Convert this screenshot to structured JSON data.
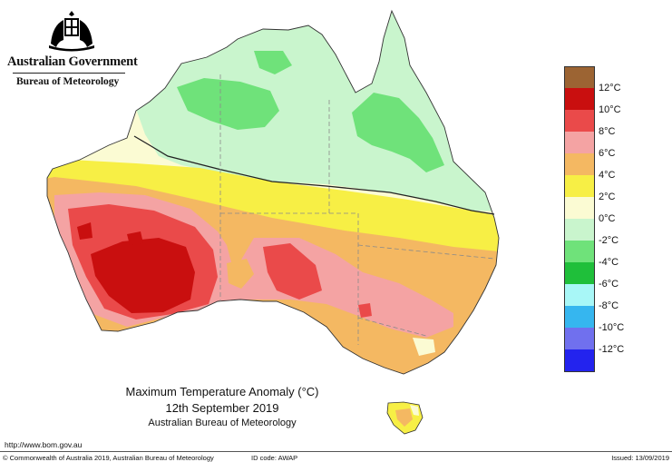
{
  "header": {
    "gov_name": "Australian Government",
    "bureau_name": "Bureau of Meteorology"
  },
  "map": {
    "colors": {
      "land_base": "#fbfbd3",
      "ocean": "#ffffff",
      "anomaly_neg2": "#c9f5cd",
      "anomaly_neg4": "#6fe27a",
      "anomaly_0": "#fbfbd3",
      "anomaly_2": "#f7ef45",
      "anomaly_4": "#f4b862",
      "anomaly_6": "#f4a3a3",
      "anomaly_8": "#ea4a4a",
      "anomaly_10": "#c90f0f",
      "boundary": "#9a9a9a",
      "zero_contour": "#222222"
    }
  },
  "legend": {
    "colors": [
      "#9c6433",
      "#c90f0f",
      "#ea4a4a",
      "#f4a3a3",
      "#f4b862",
      "#f7ef45",
      "#fbfbd3",
      "#c9f5cd",
      "#6fe27a",
      "#1fbf3a",
      "#a8f7f7",
      "#36b6ef",
      "#7070ee",
      "#2323ee"
    ],
    "labels": [
      "12°C",
      "10°C",
      "8°C",
      "6°C",
      "4°C",
      "2°C",
      "0°C",
      "-2°C",
      "-4°C",
      "-6°C",
      "-8°C",
      "-10°C",
      "-12°C"
    ]
  },
  "caption": {
    "title": "Maximum Temperature Anomaly (°C)",
    "date": "12th September 2019",
    "source": "Australian Bureau of Meteorology"
  },
  "footer": {
    "url": "http://www.bom.gov.au",
    "copyright": "© Commonwealth of Australia 2019, Australian Bureau of Meteorology",
    "id_code": "ID code: AWAP",
    "issued": "Issued: 13/09/2019"
  }
}
